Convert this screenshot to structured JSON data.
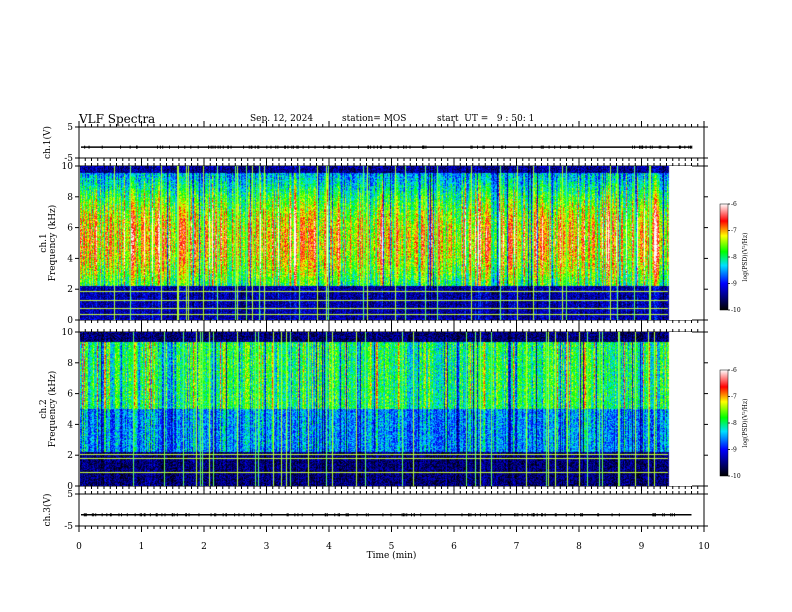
{
  "header": {
    "title": "VLF Spectra",
    "date": "Sep. 12, 2024",
    "station": "station= MOS",
    "start_ut": "start  UT =   9 : 50: 1"
  },
  "chart_data": [
    {
      "type": "line",
      "name": "ch1-voltage",
      "ylabel": "ch.1(V)",
      "ylim": [
        -5,
        5
      ],
      "yticks": [
        "5",
        "-5"
      ],
      "xlim": [
        0,
        10
      ],
      "trace_level": -1.5
    },
    {
      "type": "heatmap",
      "name": "ch1-spectrogram",
      "ylabel": "ch.1\nFrequency (kHz)",
      "ylim": [
        0,
        10
      ],
      "yticks": [
        "0",
        "2",
        "4",
        "6",
        "8",
        "10"
      ],
      "xlim": [
        0,
        10
      ],
      "data_end_min": 9.8,
      "colorbar": {
        "label": "log(PSD)(V²/Hz)",
        "range": [
          -10,
          -6
        ],
        "ticks": [
          "-6",
          "-7",
          "-8",
          "-9",
          "-10"
        ]
      },
      "intensity_profile": "strong",
      "horizontal_lines_khz": [
        0.4,
        0.8,
        1.3,
        1.9
      ]
    },
    {
      "type": "heatmap",
      "name": "ch2-spectrogram",
      "ylabel": "ch.2\nFrequency (kHz)",
      "ylim": [
        0,
        10
      ],
      "yticks": [
        "0",
        "2",
        "4",
        "6",
        "8",
        "10"
      ],
      "xlim": [
        0,
        10
      ],
      "data_end_min": 9.8,
      "colorbar": {
        "label": "log(PSD)(V²/Hz)",
        "range": [
          -10,
          -6
        ],
        "ticks": [
          "-6",
          "-7",
          "-8",
          "-9",
          "-10"
        ]
      },
      "intensity_profile": "moderate",
      "horizontal_lines_khz": [
        0.9,
        1.8,
        2.1
      ]
    },
    {
      "type": "line",
      "name": "ch3-voltage",
      "ylabel": "ch.3(V)",
      "ylim": [
        -5,
        5
      ],
      "yticks": [
        "5",
        "-5"
      ],
      "xlim": [
        0,
        10
      ],
      "trace_level": -1.5
    }
  ],
  "xaxis": {
    "label": "Time  (min)",
    "ticks": [
      "0",
      "1",
      "2",
      "3",
      "4",
      "5",
      "6",
      "7",
      "8",
      "9",
      "10"
    ]
  }
}
